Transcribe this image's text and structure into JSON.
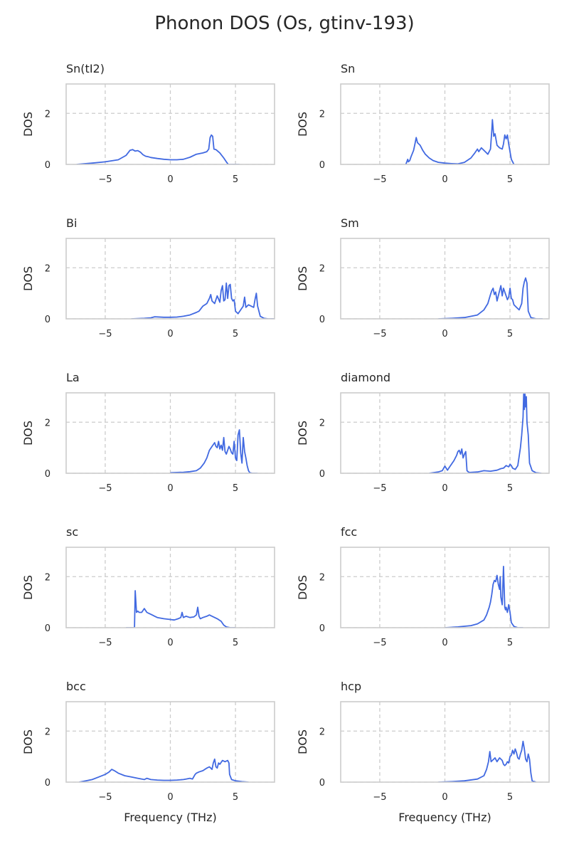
{
  "title": "Phonon DOS (Os, gtinv-193)",
  "shared": {
    "xlabel": "Frequency (THz)",
    "ylabel": "DOS",
    "xlim": [
      -8,
      8
    ],
    "ylim": [
      0,
      3.15
    ],
    "xticks": [
      -5,
      0,
      5
    ],
    "yticks": [
      0,
      2
    ],
    "line_color": "#4169E1",
    "grid_color": "#cccccc",
    "frame_color": "#cccccc",
    "grid": "dashed, at ticks"
  },
  "chart_data": [
    {
      "type": "line",
      "title": "Sn(tI2)",
      "series": [
        {
          "x": [
            -7.2,
            -6,
            -5,
            -4,
            -3.4,
            -3.1,
            -2.9,
            -2.7,
            -2.5,
            -2.3,
            -2.1,
            -1.9,
            -1.7,
            -1.5,
            -1,
            -0.5,
            0,
            0.5,
            1,
            1.5,
            2,
            2.5,
            2.8,
            2.95,
            3.05,
            3.15,
            3.25,
            3.35,
            3.5,
            3.8,
            4.1,
            4.3,
            4.45,
            5.3
          ],
          "y": [
            0,
            0.05,
            0.1,
            0.18,
            0.35,
            0.55,
            0.58,
            0.52,
            0.54,
            0.48,
            0.38,
            0.32,
            0.3,
            0.27,
            0.23,
            0.2,
            0.18,
            0.18,
            0.2,
            0.28,
            0.4,
            0.45,
            0.5,
            0.6,
            1.05,
            1.15,
            1.1,
            0.6,
            0.58,
            0.45,
            0.25,
            0.1,
            0,
            0
          ]
        }
      ]
    },
    {
      "type": "line",
      "title": "Sn",
      "series": [
        {
          "x": [
            -3,
            -2.85,
            -2.8,
            -2.7,
            -2.6,
            -2.4,
            -2.3,
            -2.2,
            -2.1,
            -1.9,
            -1.7,
            -1.5,
            -1.2,
            -0.9,
            -0.5,
            0,
            0.5,
            1,
            1.5,
            2,
            2.3,
            2.5,
            2.6,
            2.8,
            3,
            3.3,
            3.5,
            3.6,
            3.65,
            3.75,
            3.85,
            4,
            4.2,
            4.4,
            4.5,
            4.6,
            4.7,
            4.8,
            4.9,
            5.1,
            5.3
          ],
          "y": [
            0,
            0.2,
            0.1,
            0.15,
            0.3,
            0.55,
            0.8,
            1.05,
            0.85,
            0.75,
            0.55,
            0.4,
            0.25,
            0.15,
            0.08,
            0.05,
            0.03,
            0.02,
            0.08,
            0.25,
            0.45,
            0.6,
            0.5,
            0.65,
            0.55,
            0.4,
            0.6,
            1.3,
            1.75,
            1.1,
            1.2,
            0.75,
            0.65,
            0.6,
            0.8,
            1.15,
            1.0,
            1.15,
            0.8,
            0.2,
            0
          ]
        }
      ]
    },
    {
      "type": "line",
      "title": "Bi",
      "series": [
        {
          "x": [
            -3,
            -2,
            -1.5,
            -1.2,
            -0.5,
            0,
            0.5,
            1,
            1.5,
            2,
            2.2,
            2.5,
            2.8,
            3,
            3.1,
            3.2,
            3.4,
            3.6,
            3.8,
            3.9,
            4,
            4.1,
            4.2,
            4.3,
            4.4,
            4.5,
            4.6,
            4.7,
            4.8,
            4.9,
            5,
            5.2,
            5.4,
            5.6,
            5.7,
            5.8,
            5.9,
            6,
            6.2,
            6.4,
            6.5,
            6.6,
            6.7,
            6.9,
            7.2,
            7.5,
            8
          ],
          "y": [
            0,
            0.02,
            0.04,
            0.08,
            0.06,
            0.06,
            0.07,
            0.1,
            0.15,
            0.25,
            0.3,
            0.5,
            0.6,
            0.8,
            0.95,
            0.7,
            0.6,
            0.9,
            0.65,
            1.1,
            1.3,
            0.7,
            0.75,
            1.4,
            0.8,
            1.3,
            1.35,
            0.8,
            0.7,
            0.75,
            0.3,
            0.2,
            0.35,
            0.5,
            0.85,
            0.45,
            0.5,
            0.55,
            0.5,
            0.45,
            0.75,
            1.0,
            0.5,
            0.1,
            0.02,
            0,
            0
          ]
        }
      ]
    },
    {
      "type": "line",
      "title": "Sm",
      "series": [
        {
          "x": [
            -0.5,
            0.5,
            1.5,
            2.5,
            3,
            3.3,
            3.5,
            3.6,
            3.7,
            3.8,
            3.9,
            4,
            4.1,
            4.2,
            4.3,
            4.4,
            4.5,
            4.6,
            4.7,
            4.8,
            4.9,
            5,
            5.1,
            5.2,
            5.3,
            5.5,
            5.7,
            5.9,
            6,
            6.1,
            6.2,
            6.3,
            6.4,
            6.6,
            7,
            7.5
          ],
          "y": [
            0,
            0.02,
            0.05,
            0.15,
            0.35,
            0.6,
            0.95,
            1.1,
            1.2,
            0.95,
            1.05,
            0.7,
            0.9,
            1.1,
            1.3,
            0.9,
            1.2,
            1.05,
            0.9,
            0.75,
            0.85,
            1.2,
            0.8,
            0.75,
            0.55,
            0.45,
            0.35,
            0.6,
            1.2,
            1.45,
            1.6,
            1.4,
            0.3,
            0.05,
            0,
            0
          ]
        }
      ]
    },
    {
      "type": "line",
      "title": "La",
      "series": [
        {
          "x": [
            0,
            1,
            1.5,
            2,
            2.3,
            2.6,
            2.8,
            3,
            3.2,
            3.4,
            3.5,
            3.6,
            3.7,
            3.8,
            3.9,
            4,
            4.1,
            4.2,
            4.3,
            4.4,
            4.5,
            4.6,
            4.7,
            4.8,
            4.9,
            5,
            5.1,
            5.2,
            5.3,
            5.4,
            5.5,
            5.6,
            5.7,
            5.8,
            5.9,
            6,
            6.1,
            6.3,
            6.7
          ],
          "y": [
            0.02,
            0.04,
            0.06,
            0.1,
            0.2,
            0.4,
            0.6,
            0.9,
            1.05,
            1.2,
            1.05,
            1.0,
            1.25,
            0.95,
            1.1,
            0.9,
            1.4,
            0.85,
            0.75,
            0.9,
            1.05,
            0.95,
            0.8,
            0.75,
            1.25,
            0.6,
            0.5,
            1.5,
            1.7,
            0.8,
            0.4,
            1.4,
            0.85,
            0.6,
            0.3,
            0.1,
            0.02,
            0,
            0
          ]
        }
      ]
    },
    {
      "type": "line",
      "title": "diamond",
      "series": [
        {
          "x": [
            -1.2,
            -0.5,
            -0.2,
            0,
            0.2,
            0.3,
            0.5,
            0.7,
            0.9,
            1,
            1.1,
            1.2,
            1.3,
            1.4,
            1.5,
            1.6,
            1.7,
            1.8,
            1.9,
            2.5,
            3,
            3.5,
            4,
            4.3,
            4.5,
            4.7,
            4.9,
            5,
            5.1,
            5.2,
            5.4,
            5.6,
            5.8,
            5.9,
            6,
            6.05,
            6.1,
            6.15,
            6.2,
            6.25,
            6.3,
            6.4,
            6.5,
            6.7,
            7,
            7.4
          ],
          "y": [
            0,
            0.05,
            0.1,
            0.28,
            0.12,
            0.2,
            0.35,
            0.5,
            0.7,
            0.85,
            0.9,
            0.75,
            0.95,
            0.6,
            0.75,
            0.85,
            0.1,
            0.05,
            0.03,
            0.05,
            0.1,
            0.08,
            0.12,
            0.18,
            0.2,
            0.3,
            0.25,
            0.35,
            0.3,
            0.2,
            0.15,
            0.3,
            1.0,
            1.5,
            2.2,
            3.1,
            2.5,
            3.1,
            2.6,
            3.0,
            2.0,
            1.5,
            0.4,
            0.1,
            0.02,
            0
          ]
        }
      ]
    },
    {
      "type": "line",
      "title": "sc",
      "series": [
        {
          "x": [
            -3.4,
            -2.75,
            -2.7,
            -2.6,
            -2.5,
            -2.4,
            -2.2,
            -2,
            -1.8,
            -1.6,
            -1.4,
            -1.2,
            -1,
            -0.5,
            0,
            0.3,
            0.6,
            0.8,
            0.9,
            1,
            1.2,
            1.5,
            1.8,
            2,
            2.1,
            2.2,
            2.3,
            2.5,
            2.8,
            3,
            3.2,
            3.4,
            3.6,
            3.9,
            4.1,
            4.3,
            4.6,
            5
          ],
          "y": [
            0,
            0,
            1.45,
            0.6,
            0.65,
            0.6,
            0.6,
            0.75,
            0.6,
            0.55,
            0.5,
            0.45,
            0.4,
            0.35,
            0.32,
            0.3,
            0.35,
            0.4,
            0.6,
            0.4,
            0.45,
            0.4,
            0.42,
            0.5,
            0.8,
            0.45,
            0.35,
            0.4,
            0.45,
            0.5,
            0.45,
            0.4,
            0.35,
            0.25,
            0.1,
            0.03,
            0,
            0
          ]
        }
      ]
    },
    {
      "type": "line",
      "title": "fcc",
      "series": [
        {
          "x": [
            0,
            1,
            2,
            2.5,
            3,
            3.2,
            3.4,
            3.5,
            3.6,
            3.7,
            3.8,
            3.9,
            4,
            4.1,
            4.2,
            4.25,
            4.3,
            4.4,
            4.5,
            4.55,
            4.6,
            4.65,
            4.7,
            4.8,
            4.9,
            5,
            5.1,
            5.3,
            5.6,
            6
          ],
          "y": [
            0,
            0.03,
            0.08,
            0.15,
            0.3,
            0.5,
            0.8,
            1.0,
            1.3,
            1.7,
            1.85,
            1.8,
            2.05,
            1.7,
            1.5,
            2.0,
            1.2,
            0.9,
            2.4,
            1.6,
            0.8,
            0.7,
            0.8,
            0.6,
            0.9,
            0.6,
            0.2,
            0.05,
            0,
            0
          ]
        }
      ]
    },
    {
      "type": "line",
      "title": "bcc",
      "series": [
        {
          "x": [
            -7,
            -6.5,
            -6,
            -5.5,
            -5,
            -4.7,
            -4.5,
            -4.3,
            -4,
            -3.5,
            -3,
            -2.5,
            -2,
            -1.8,
            -1.5,
            -1,
            -0.5,
            0,
            0.5,
            1,
            1.2,
            1.5,
            1.7,
            1.9,
            2,
            2.2,
            2.5,
            2.8,
            3,
            3.1,
            3.2,
            3.3,
            3.4,
            3.5,
            3.6,
            3.7,
            3.8,
            4,
            4.2,
            4.4,
            4.5,
            4.55,
            4.7,
            5,
            5.5,
            6
          ],
          "y": [
            0,
            0.05,
            0.1,
            0.2,
            0.3,
            0.4,
            0.5,
            0.45,
            0.35,
            0.25,
            0.2,
            0.15,
            0.1,
            0.15,
            0.1,
            0.08,
            0.07,
            0.07,
            0.08,
            0.1,
            0.12,
            0.15,
            0.12,
            0.3,
            0.35,
            0.4,
            0.45,
            0.55,
            0.6,
            0.55,
            0.5,
            0.75,
            0.9,
            0.6,
            0.55,
            0.75,
            0.7,
            0.85,
            0.8,
            0.85,
            0.75,
            0.3,
            0.1,
            0.05,
            0.02,
            0
          ]
        }
      ]
    },
    {
      "type": "line",
      "title": "hcp",
      "series": [
        {
          "x": [
            -0.5,
            0.5,
            1.5,
            2.5,
            3,
            3.2,
            3.35,
            3.45,
            3.55,
            3.65,
            3.75,
            3.85,
            4,
            4.2,
            4.4,
            4.5,
            4.6,
            4.7,
            4.8,
            4.9,
            5,
            5.1,
            5.2,
            5.3,
            5.4,
            5.5,
            5.6,
            5.7,
            5.8,
            5.9,
            6,
            6.1,
            6.2,
            6.3,
            6.4,
            6.5,
            6.6,
            6.7,
            7
          ],
          "y": [
            0,
            0.02,
            0.05,
            0.12,
            0.25,
            0.5,
            0.8,
            1.2,
            0.8,
            0.85,
            0.9,
            0.95,
            0.8,
            0.95,
            0.85,
            0.7,
            0.65,
            0.7,
            0.8,
            0.75,
            1.0,
            1.05,
            1.25,
            1.1,
            1.3,
            1.15,
            0.95,
            0.9,
            1.1,
            1.25,
            1.6,
            1.3,
            0.9,
            0.8,
            1.1,
            0.9,
            0.35,
            0.05,
            0
          ]
        }
      ]
    }
  ]
}
